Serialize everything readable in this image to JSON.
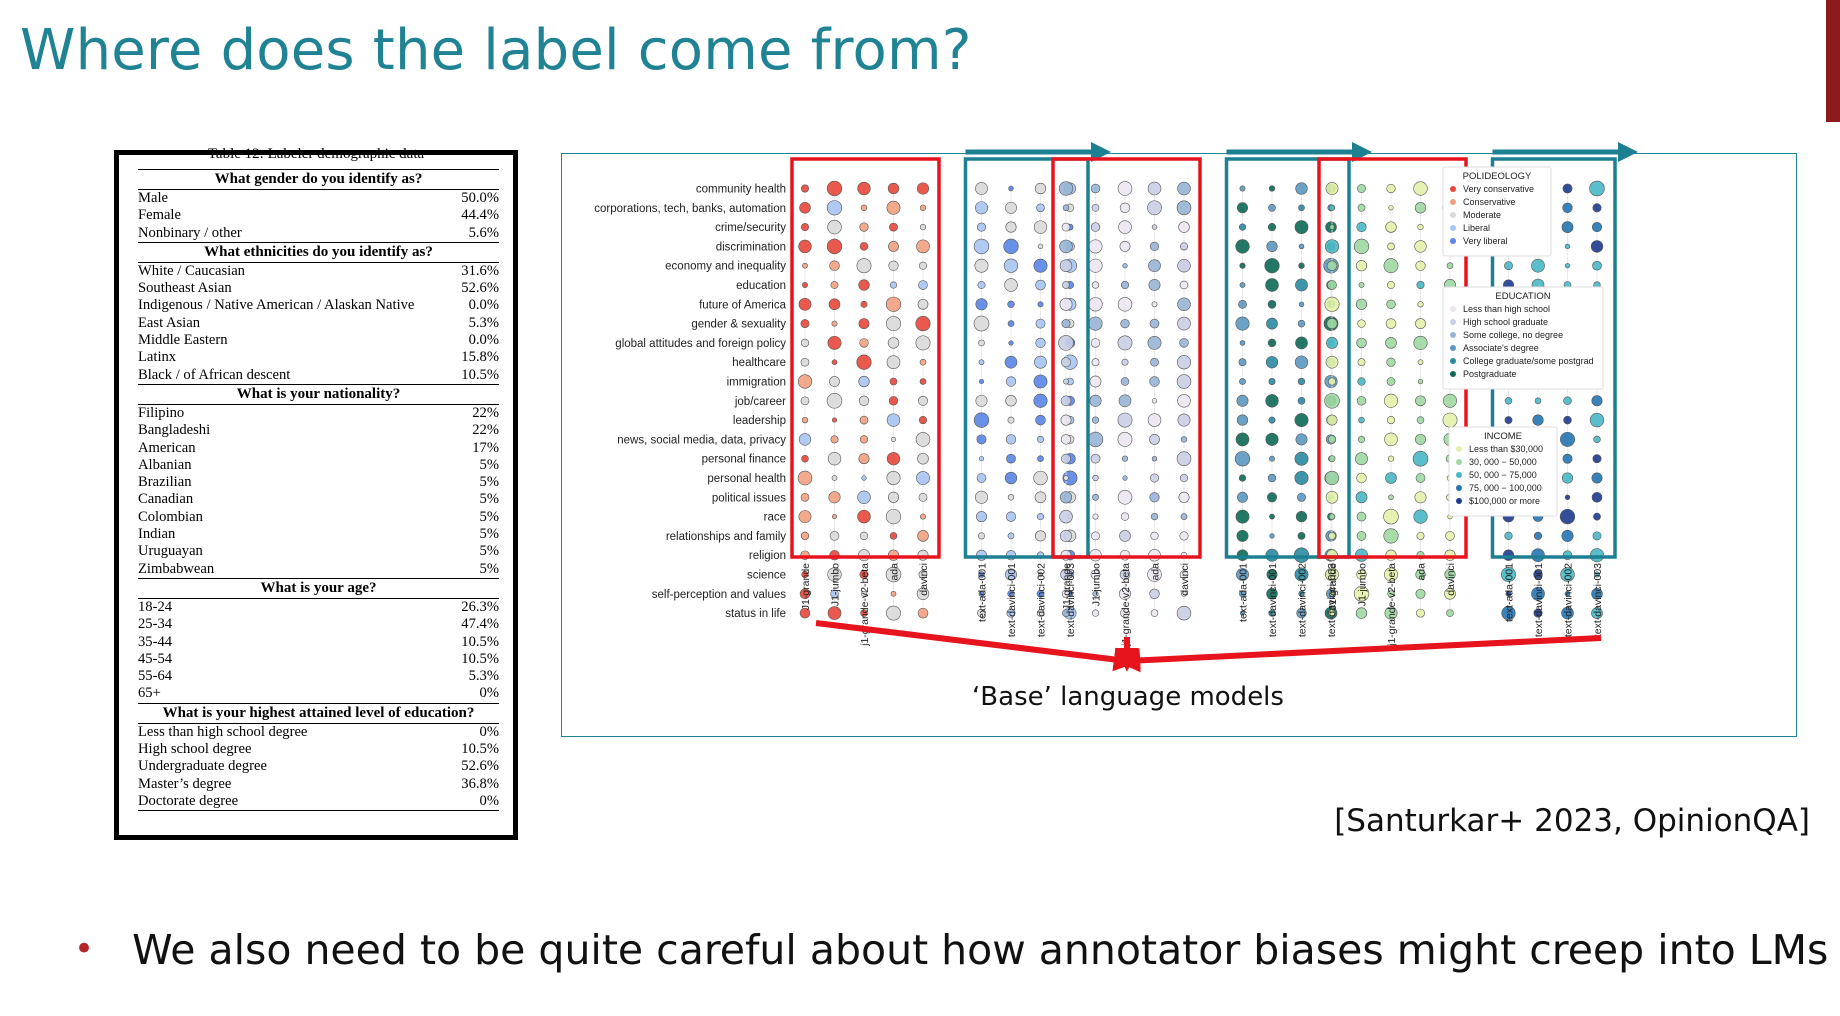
{
  "slide": {
    "title": "Where does the label come from?",
    "citation": "[Santurkar+ 2023, OpinionQA]",
    "bullet": "We also need to be quite careful about how annotator biases might creep into LMs"
  },
  "demographics_table": {
    "caption": "Table 12: Labeler demographic data",
    "sections": [
      {
        "title": "What gender do you identify as?",
        "rows": [
          [
            "Male",
            "50.0%"
          ],
          [
            "Female",
            "44.4%"
          ],
          [
            "Nonbinary / other",
            "5.6%"
          ]
        ]
      },
      {
        "title": "What ethnicities do you identify as?",
        "rows": [
          [
            "White / Caucasian",
            "31.6%"
          ],
          [
            "Southeast Asian",
            "52.6%"
          ],
          [
            "Indigenous / Native American / Alaskan Native",
            "0.0%"
          ],
          [
            "East Asian",
            "5.3%"
          ],
          [
            "Middle Eastern",
            "0.0%"
          ],
          [
            "Latinx",
            "15.8%"
          ],
          [
            "Black / of African descent",
            "10.5%"
          ]
        ]
      },
      {
        "title": "What is your nationality?",
        "rows": [
          [
            "Filipino",
            "22%"
          ],
          [
            "Bangladeshi",
            "22%"
          ],
          [
            "American",
            "17%"
          ],
          [
            "Albanian",
            "5%"
          ],
          [
            "Brazilian",
            "5%"
          ],
          [
            "Canadian",
            "5%"
          ],
          [
            "Colombian",
            "5%"
          ],
          [
            "Indian",
            "5%"
          ],
          [
            "Uruguayan",
            "5%"
          ],
          [
            "Zimbabwean",
            "5%"
          ]
        ]
      },
      {
        "title": "What is your age?",
        "rows": [
          [
            "18-24",
            "26.3%"
          ],
          [
            "25-34",
            "47.4%"
          ],
          [
            "35-44",
            "10.5%"
          ],
          [
            "45-54",
            "10.5%"
          ],
          [
            "55-64",
            "5.3%"
          ],
          [
            "65+",
            "0%"
          ]
        ]
      },
      {
        "title": "What is your highest attained level of education?",
        "rows": [
          [
            "Less than high school degree",
            "0%"
          ],
          [
            "High school degree",
            "10.5%"
          ],
          [
            "Undergraduate degree",
            "52.6%"
          ],
          [
            "Master’s degree",
            "36.8%"
          ],
          [
            "Doctorate degree",
            "0%"
          ]
        ]
      }
    ]
  },
  "chart_data": {
    "type": "scatter",
    "categories": [
      "community health",
      "corporations, tech, banks, automation",
      "crime/security",
      "discrimination",
      "economy and inequality",
      "education",
      "future of America",
      "gender & sexuality",
      "global attitudes and foreign policy",
      "healthcare",
      "immigration",
      "job/career",
      "leadership",
      "news, social media, data, privacy",
      "personal finance",
      "personal health",
      "political issues",
      "race",
      "relationships and family",
      "religion",
      "science",
      "self-perception and values",
      "status in life"
    ],
    "models": [
      {
        "name": "J1-grande",
        "group": "base"
      },
      {
        "name": "J1-jumbo",
        "group": "base"
      },
      {
        "name": "j1-grande-v2-beta",
        "group": "base"
      },
      {
        "name": "ada",
        "group": "base"
      },
      {
        "name": "davinci",
        "group": "base"
      },
      {
        "name": "text-ada-001",
        "group": "tuned"
      },
      {
        "name": "text-davinci-001",
        "group": "tuned"
      },
      {
        "name": "text-davinci-002",
        "group": "tuned"
      },
      {
        "name": "text-davinci-003",
        "group": "tuned"
      }
    ],
    "panels": [
      "POLIDEOLOGY",
      "EDUCATION",
      "INCOME"
    ],
    "legends": [
      {
        "title": "POLIDEOLOGY",
        "entries": [
          [
            "Very conservative",
            "#e8473a"
          ],
          [
            "Conservative",
            "#f2a07f"
          ],
          [
            "Moderate",
            "#d9d9d9"
          ],
          [
            "Liberal",
            "#a7c4f2"
          ],
          [
            "Very liberal",
            "#5a85e6"
          ]
        ]
      },
      {
        "title": "EDUCATION",
        "entries": [
          [
            "Less than high school",
            "#ece6f2"
          ],
          [
            "High school graduate",
            "#c9cee4"
          ],
          [
            "Some college, no degree",
            "#97b4d4"
          ],
          [
            "Associate's degree",
            "#5c98c0"
          ],
          [
            "College graduate/some postgrad",
            "#2a8aa0"
          ],
          [
            "Postgraduate",
            "#0c6a55"
          ]
        ]
      },
      {
        "title": "INCOME",
        "entries": [
          [
            "Less than $30,000",
            "#e2f1a8"
          ],
          [
            "30, 000 − 50,000",
            "#9fd8a2"
          ],
          [
            "50, 000 − 75,000",
            "#48b8c4"
          ],
          [
            "75, 000 − 100,000",
            "#2476b3"
          ],
          [
            "$100,000 or more",
            "#1e3a8e"
          ]
        ]
      }
    ],
    "annotation": "‘Base’ language models"
  },
  "colors": {
    "title": "#1f8393",
    "frame": "#1d8595",
    "red_box": "#e8141d",
    "teal_box": "#1d7f92"
  }
}
